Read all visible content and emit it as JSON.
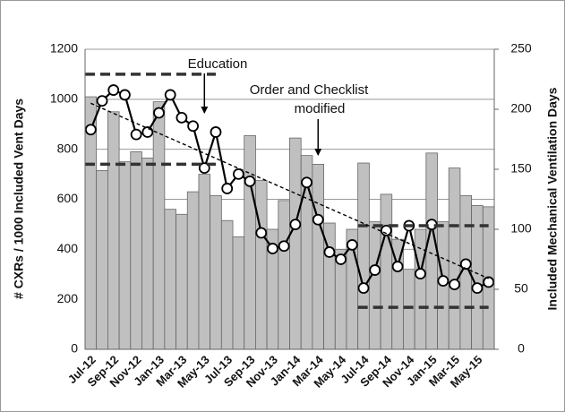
{
  "chart_data": {
    "type": "bar-line",
    "y_label": "# CXRs / 1000 Included Vent Days",
    "y2_label": "Included Mechanical Ventilation Days",
    "categories": [
      "Jul-12",
      null,
      "Sep-12",
      null,
      "Nov-12",
      null,
      "Jan-13",
      null,
      "Mar-13",
      null,
      "May-13",
      null,
      "Jul-13",
      null,
      "Sep-13",
      null,
      "Nov-13",
      null,
      "Jan-14",
      null,
      "Mar-14",
      null,
      "May-14",
      null,
      "Jul-14",
      null,
      "Sep-14",
      null,
      "Nov-14",
      null,
      "Jan-15",
      null,
      "Mar-15",
      null,
      "May-15",
      null
    ],
    "series": [
      {
        "kind": "bar",
        "axis": "y",
        "color": "#c0c0c0",
        "values": [
          1010,
          715,
          950,
          750,
          790,
          765,
          990,
          560,
          540,
          630,
          700,
          615,
          515,
          450,
          855,
          675,
          480,
          595,
          845,
          775,
          740,
          505,
          400,
          480,
          745,
          510,
          620,
          440,
          320,
          480,
          785,
          510,
          725,
          615,
          575,
          570
        ]
      },
      {
        "kind": "line",
        "axis": "y2",
        "color": "#000000",
        "values": [
          183,
          207,
          216,
          212,
          179,
          181,
          197,
          212,
          193,
          186,
          151,
          181,
          134,
          146,
          140,
          97,
          84,
          86,
          104,
          139,
          108,
          81,
          75,
          87,
          51,
          66,
          99,
          69,
          103,
          63,
          104,
          57,
          54,
          71,
          51,
          56
        ]
      }
    ],
    "ylim": [
      0,
      1200
    ],
    "yticks": [
      0,
      200,
      400,
      600,
      800,
      1000,
      1200
    ],
    "y2lim": [
      0,
      250
    ],
    "y2ticks": [
      0,
      50,
      100,
      150,
      200,
      250
    ],
    "grid": true,
    "reference_lines": [
      {
        "axis": "y",
        "value": 1100,
        "from": 0,
        "to": 11
      },
      {
        "axis": "y",
        "value": 740,
        "from": 0,
        "to": 11
      },
      {
        "axis": "y2",
        "value": 103,
        "from": 24,
        "to": 35
      },
      {
        "axis": "y2",
        "value": 35,
        "from": 24,
        "to": 35
      }
    ],
    "trendline": {
      "axis": "y2",
      "from": [
        0,
        205
      ],
      "to": [
        35,
        59
      ]
    },
    "annotations": [
      "Education",
      "Order and Checklist",
      "modified"
    ]
  }
}
